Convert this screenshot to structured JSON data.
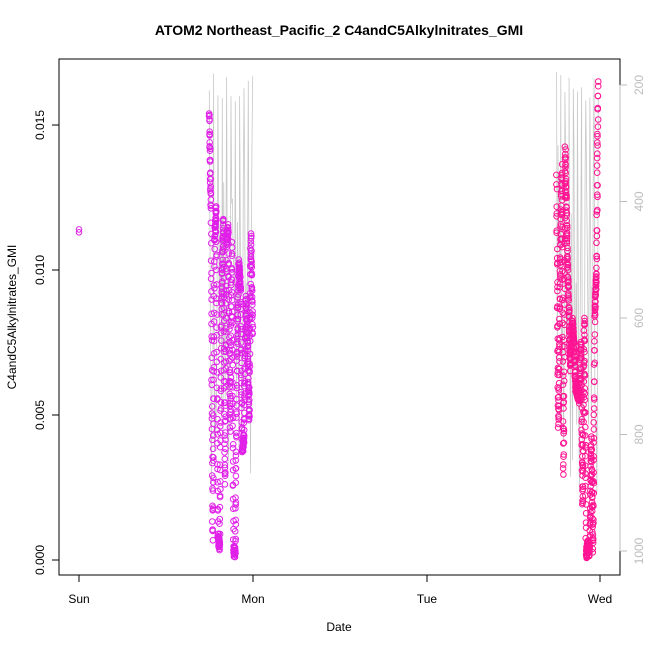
{
  "chart_data": {
    "type": "scatter",
    "title": "ATOM2 Northeast_Pacific_2 C4andC5AlkylnitratesGMI",
    "title_display": "ATOM2 Northeast_Pacific_2 C4andC5Alkylnitrates_GMI",
    "xlabel": "Date",
    "ylabel": "C4andC5Alkylnitrates_GMI",
    "x_tick_labels": [
      "Sun",
      "Mon",
      "Tue",
      "Wed"
    ],
    "x_range_days": [
      0,
      3
    ],
    "ylim": [
      0.0,
      0.0172
    ],
    "y_ticks": [
      0.0,
      0.005,
      0.01,
      0.015
    ],
    "y_tick_labels": [
      "0.000",
      "0.005",
      "0.010",
      "0.015"
    ],
    "y2_ticks": [
      200,
      400,
      600,
      800,
      1000
    ],
    "y2_tick_labels": [
      "200",
      "400",
      "600",
      "800",
      "1000"
    ],
    "y2_range_hPa": [
      170,
      1030
    ],
    "grid": false,
    "legend": "none",
    "colors": {
      "series_1": "#e020e8",
      "series_2": "#ff1493",
      "pressure_trace": "#c8c8c8"
    },
    "series": [
      {
        "segments": [
          {
            "x": [
              0.0,
              0.0
            ],
            "y": [
              0.0113,
              0.0114
            ]
          },
          {
            "x": [
              0.75,
              0.76,
              0.77,
              0.78,
              0.79,
              0.8,
              0.81,
              0.82,
              0.83,
              0.84,
              0.85,
              0.86,
              0.87,
              0.88,
              0.89,
              0.9,
              0.91,
              0.92,
              0.93,
              0.94,
              0.95,
              0.96,
              0.97,
              0.98,
              0.99,
              1.0
            ],
            "y": [
              0.0155,
              0.012,
              0.0005,
              0.011,
              0.0122,
              0.0008,
              0.0005,
              0.0085,
              0.0118,
              0.0025,
              0.011,
              0.0115,
              0.0045,
              0.0108,
              0.0003,
              0.0003,
              0.007,
              0.0102,
              0.0095,
              0.0038,
              0.0042,
              0.009,
              0.0075,
              0.0048,
              0.0113,
              0.0078
            ]
          }
        ]
      },
      {
        "segments": [
          {
            "x": [
              2.75,
              2.76,
              2.77,
              2.78,
              2.79,
              2.8,
              2.81,
              2.82,
              2.83,
              2.84,
              2.85,
              2.86,
              2.87,
              2.88,
              2.89,
              2.9,
              2.91,
              2.92,
              2.93,
              2.94,
              2.95,
              2.96,
              2.97,
              2.98,
              2.99
            ],
            "y": [
              0.0132,
              0.0045,
              0.0095,
              0.0135,
              0.0028,
              0.0142,
              0.0112,
              0.0088,
              0.0065,
              0.0082,
              0.0075,
              0.006,
              0.0058,
              0.0055,
              0.0075,
              0.0018,
              0.0085,
              0.0002,
              0.0005,
              0.0002,
              0.0042,
              0.0003,
              0.0085,
              0.01,
              0.0165
            ]
          }
        ]
      }
    ]
  }
}
